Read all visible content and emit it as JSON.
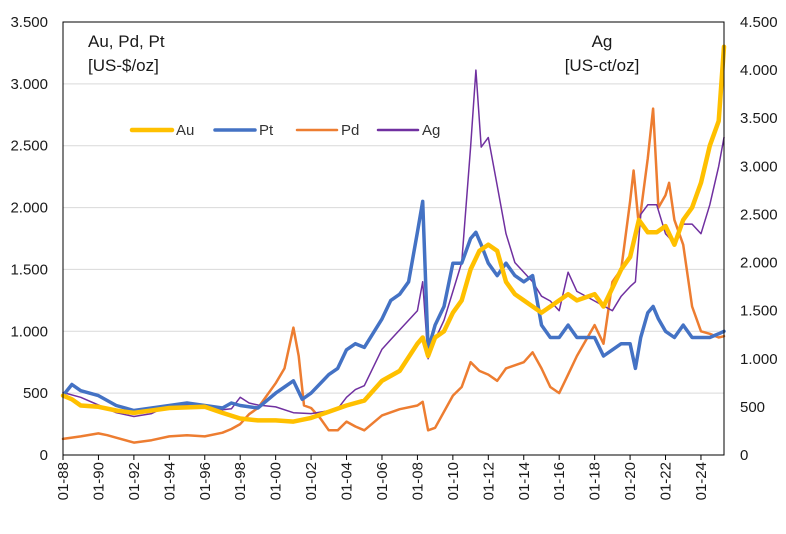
{
  "chart_data": {
    "type": "line",
    "left_axis_label": [
      "Au, Pd, Pt",
      "[US-$/oz]"
    ],
    "right_axis_label": [
      "Ag",
      "[US-ct/oz]"
    ],
    "left_ylim": [
      0,
      3500
    ],
    "right_ylim": [
      0,
      4500
    ],
    "left_ticks": [
      0,
      500,
      1000,
      1500,
      2000,
      2500,
      3000,
      3500
    ],
    "left_tick_labels": [
      "0",
      "500",
      "1.000",
      "1.500",
      "2.000",
      "2.500",
      "3.000",
      "3.500"
    ],
    "right_ticks": [
      0,
      500,
      1000,
      1500,
      2000,
      2500,
      3000,
      3500,
      4000,
      4500
    ],
    "right_tick_labels": [
      "0",
      "500",
      "1.000",
      "1.500",
      "2.000",
      "2.500",
      "3.000",
      "3.500",
      "4.000",
      "4.500"
    ],
    "xlim": [
      1988.0,
      2025.3
    ],
    "x_ticks": [
      1988,
      1990,
      1992,
      1994,
      1996,
      1998,
      2000,
      2002,
      2004,
      2006,
      2008,
      2010,
      2012,
      2014,
      2016,
      2018,
      2020,
      2022,
      2024
    ],
    "x_tick_labels": [
      "01-88",
      "01-90",
      "01-92",
      "01-94",
      "01-96",
      "01-98",
      "01-00",
      "01-02",
      "01-04",
      "01-06",
      "01-08",
      "01-10",
      "01-12",
      "01-14",
      "01-16",
      "01-18",
      "01-20",
      "01-22",
      "01-24"
    ],
    "gridlines": true,
    "legend_position": "upper-left",
    "series": [
      {
        "name": "Pd",
        "axis": "left",
        "color": "#ED7D31",
        "width": 2.5,
        "x": [
          1988,
          1989,
          1990,
          1990.5,
          1991,
          1992,
          1993,
          1994,
          1995,
          1996,
          1997,
          1997.5,
          1998,
          1998.5,
          1999,
          2000,
          2000.5,
          2001,
          2001.3,
          2001.6,
          2002,
          2002.5,
          2003,
          2003.5,
          2004,
          2004.5,
          2005,
          2006,
          2007,
          2008,
          2008.3,
          2008.6,
          2009,
          2010,
          2010.5,
          2011,
          2011.5,
          2012,
          2012.5,
          2013,
          2014,
          2014.5,
          2015,
          2015.5,
          2016,
          2016.5,
          2017,
          2018,
          2018.5,
          2019,
          2019.5,
          2020,
          2020.2,
          2020.5,
          2021,
          2021.3,
          2021.6,
          2022,
          2022.2,
          2022.5,
          2023,
          2023.5,
          2024,
          2024.5,
          2025,
          2025.3
        ],
        "values": [
          130,
          150,
          175,
          160,
          140,
          100,
          120,
          150,
          160,
          150,
          180,
          210,
          250,
          330,
          380,
          580,
          700,
          1030,
          800,
          400,
          380,
          300,
          200,
          200,
          270,
          230,
          200,
          320,
          370,
          400,
          430,
          200,
          220,
          480,
          550,
          750,
          680,
          650,
          600,
          700,
          750,
          830,
          700,
          550,
          500,
          650,
          800,
          1050,
          900,
          1400,
          1500,
          2050,
          2300,
          1850,
          2400,
          2800,
          2000,
          2100,
          2200,
          1900,
          1700,
          1200,
          1000,
          980,
          950,
          960
        ]
      },
      {
        "name": "Ag",
        "axis": "right",
        "color": "#7030A0",
        "width": 1.5,
        "x": [
          1988,
          1989,
          1990,
          1991,
          1992,
          1993,
          1994,
          1995,
          1996,
          1997,
          1997.5,
          1998,
          1998.5,
          1999,
          2000,
          2001,
          2002,
          2003,
          2003.5,
          2004,
          2004.5,
          2005,
          2006,
          2006.5,
          2007,
          2008,
          2008.3,
          2008.6,
          2009,
          2009.5,
          2010,
          2010.5,
          2011,
          2011.3,
          2011.6,
          2012,
          2012.5,
          2013,
          2013.5,
          2014,
          2014.5,
          2015,
          2015.5,
          2016,
          2016.5,
          2017,
          2018,
          2018.5,
          2019,
          2019.5,
          2020,
          2020.3,
          2020.6,
          2021,
          2021.5,
          2022,
          2022.5,
          2023,
          2023.5,
          2024,
          2024.5,
          2025,
          2025.3
        ],
        "values": [
          650,
          600,
          520,
          440,
          400,
          430,
          520,
          520,
          520,
          470,
          480,
          600,
          540,
          520,
          500,
          440,
          430,
          460,
          480,
          600,
          680,
          720,
          1100,
          1200,
          1300,
          1500,
          1800,
          1000,
          1200,
          1400,
          1700,
          2000,
          3200,
          4000,
          3200,
          3300,
          2800,
          2300,
          2000,
          1900,
          1800,
          1650,
          1600,
          1500,
          1900,
          1700,
          1600,
          1550,
          1500,
          1650,
          1750,
          1800,
          2500,
          2600,
          2600,
          2300,
          2200,
          2400,
          2400,
          2300,
          2600,
          3000,
          3300
        ]
      },
      {
        "name": "Pt",
        "axis": "left",
        "color": "#4472C4",
        "width": 3.5,
        "x": [
          1988,
          1988.5,
          1989,
          1990,
          1991,
          1992,
          1993,
          1994,
          1995,
          1996,
          1997,
          1997.5,
          1998,
          1999,
          2000,
          2000.5,
          2001,
          2001.5,
          2002,
          2003,
          2003.5,
          2004,
          2004.5,
          2005,
          2006,
          2006.5,
          2007,
          2007.5,
          2008,
          2008.3,
          2008.6,
          2009,
          2009.5,
          2010,
          2010.5,
          2011,
          2011.3,
          2011.6,
          2012,
          2012.5,
          2013,
          2013.5,
          2014,
          2014.5,
          2015,
          2015.5,
          2016,
          2016.5,
          2017,
          2018,
          2018.5,
          2019,
          2019.5,
          2020,
          2020.3,
          2020.6,
          2021,
          2021.3,
          2021.6,
          2022,
          2022.5,
          2023,
          2023.5,
          2024,
          2024.5,
          2025,
          2025.3
        ],
        "values": [
          480,
          570,
          520,
          480,
          400,
          360,
          380,
          400,
          420,
          400,
          380,
          420,
          400,
          380,
          500,
          550,
          600,
          450,
          500,
          650,
          700,
          850,
          900,
          870,
          1100,
          1250,
          1300,
          1400,
          1800,
          2050,
          850,
          1050,
          1200,
          1550,
          1550,
          1750,
          1800,
          1700,
          1550,
          1450,
          1550,
          1450,
          1400,
          1450,
          1050,
          950,
          950,
          1050,
          950,
          950,
          800,
          850,
          900,
          900,
          700,
          950,
          1150,
          1200,
          1100,
          1000,
          950,
          1050,
          950,
          950,
          950,
          980,
          1000
        ]
      },
      {
        "name": "Au",
        "axis": "left",
        "color": "#FFC000",
        "width": 4.5,
        "x": [
          1988,
          1988.5,
          1989,
          1990,
          1991,
          1992,
          1993,
          1994,
          1995,
          1996,
          1997,
          1998,
          1999,
          2000,
          2001,
          2002,
          2003,
          2004,
          2005,
          2006,
          2007,
          2008,
          2008.3,
          2008.6,
          2009,
          2009.5,
          2010,
          2010.5,
          2011,
          2011.5,
          2012,
          2012.5,
          2013,
          2013.5,
          2014,
          2015,
          2016,
          2016.5,
          2017,
          2018,
          2018.5,
          2019,
          2019.5,
          2020,
          2020.5,
          2021,
          2021.5,
          2022,
          2022.5,
          2023,
          2023.5,
          2024,
          2024.5,
          2025,
          2025.3
        ],
        "values": [
          480,
          450,
          400,
          390,
          360,
          340,
          360,
          380,
          385,
          390,
          340,
          295,
          280,
          280,
          270,
          300,
          350,
          400,
          440,
          600,
          680,
          900,
          950,
          800,
          950,
          1000,
          1150,
          1250,
          1500,
          1650,
          1700,
          1650,
          1400,
          1300,
          1250,
          1150,
          1250,
          1300,
          1250,
          1300,
          1200,
          1350,
          1500,
          1600,
          1900,
          1800,
          1800,
          1850,
          1700,
          1900,
          2000,
          2200,
          2500,
          2700,
          3300
        ]
      }
    ]
  }
}
